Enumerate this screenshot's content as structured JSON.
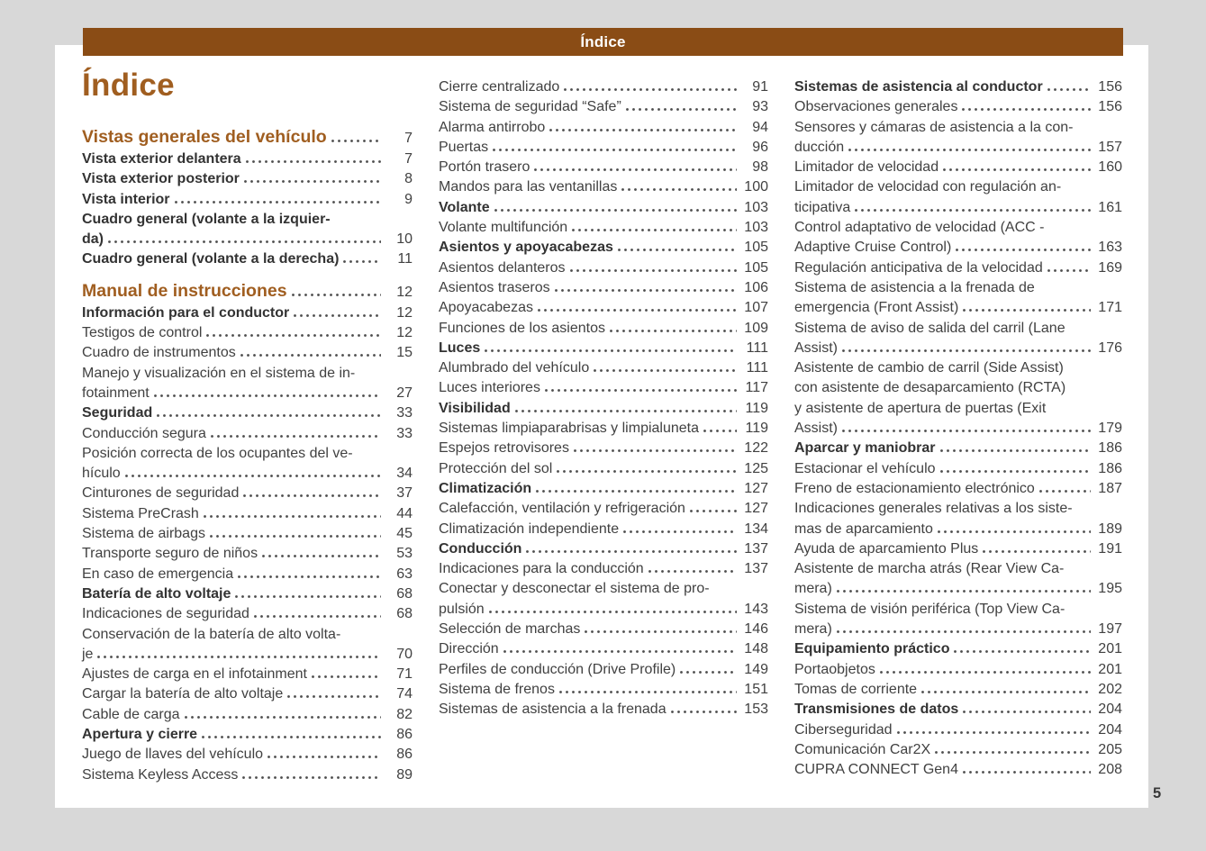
{
  "header": {
    "bar_title": "Índice"
  },
  "page": {
    "title": "Índice",
    "page_number": "5"
  },
  "colors": {
    "background": "#d8d8d8",
    "bar_brown": "#8a4c15",
    "accent_brown": "#a05e20",
    "text": "#414141"
  },
  "columns": [
    {
      "entries": [
        {
          "style": "h1",
          "lines": [
            "Vistas generales del vehículo"
          ],
          "page": "7"
        },
        {
          "style": "bold",
          "lines": [
            "Vista exterior delantera"
          ],
          "page": "7"
        },
        {
          "style": "bold",
          "lines": [
            "Vista exterior posterior"
          ],
          "page": "8"
        },
        {
          "style": "bold",
          "lines": [
            "Vista interior"
          ],
          "page": "9"
        },
        {
          "style": "bold",
          "lines": [
            "Cuadro general (volante a la izquier-",
            "da)"
          ],
          "page": "10"
        },
        {
          "style": "bold",
          "lines": [
            "Cuadro general (volante a la derecha)"
          ],
          "page": "11"
        },
        {
          "style": "h1",
          "lines": [
            "Manual de instrucciones"
          ],
          "page": "12"
        },
        {
          "style": "bold",
          "lines": [
            "Información para el conductor"
          ],
          "page": "12"
        },
        {
          "style": "normal",
          "lines": [
            "Testigos de control"
          ],
          "page": "12"
        },
        {
          "style": "normal",
          "lines": [
            "Cuadro de instrumentos"
          ],
          "page": "15"
        },
        {
          "style": "normal",
          "lines": [
            "Manejo y visualización en el sistema de in-",
            "fotainment"
          ],
          "page": "27"
        },
        {
          "style": "bold",
          "lines": [
            "Seguridad"
          ],
          "page": "33"
        },
        {
          "style": "normal",
          "lines": [
            "Conducción segura"
          ],
          "page": "33"
        },
        {
          "style": "normal",
          "lines": [
            "Posición correcta de los ocupantes del ve-",
            "hículo"
          ],
          "page": "34"
        },
        {
          "style": "normal",
          "lines": [
            "Cinturones de seguridad"
          ],
          "page": "37"
        },
        {
          "style": "normal",
          "lines": [
            "Sistema PreCrash"
          ],
          "page": "44"
        },
        {
          "style": "normal",
          "lines": [
            "Sistema de airbags"
          ],
          "page": "45"
        },
        {
          "style": "normal",
          "lines": [
            "Transporte seguro de niños"
          ],
          "page": "53"
        },
        {
          "style": "normal",
          "lines": [
            "En caso de emergencia"
          ],
          "page": "63"
        },
        {
          "style": "bold",
          "lines": [
            "Batería de alto voltaje"
          ],
          "page": "68"
        },
        {
          "style": "normal",
          "lines": [
            "Indicaciones de seguridad"
          ],
          "page": "68"
        },
        {
          "style": "normal",
          "lines": [
            "Conservación de la batería de alto volta-",
            "je"
          ],
          "page": "70"
        },
        {
          "style": "normal",
          "lines": [
            "Ajustes de carga en el infotainment"
          ],
          "page": "71"
        },
        {
          "style": "normal",
          "lines": [
            "Cargar la batería de alto voltaje"
          ],
          "page": "74"
        },
        {
          "style": "normal",
          "lines": [
            "Cable de carga"
          ],
          "page": "82"
        },
        {
          "style": "bold",
          "lines": [
            "Apertura y cierre"
          ],
          "page": "86"
        },
        {
          "style": "normal",
          "lines": [
            "Juego de llaves del vehículo"
          ],
          "page": "86"
        },
        {
          "style": "normal",
          "lines": [
            "Sistema Keyless Access"
          ],
          "page": "89"
        }
      ]
    },
    {
      "entries": [
        {
          "style": "normal",
          "lines": [
            "Cierre centralizado"
          ],
          "page": "91"
        },
        {
          "style": "normal",
          "lines": [
            "Sistema de seguridad “Safe”"
          ],
          "page": "93"
        },
        {
          "style": "normal",
          "lines": [
            "Alarma antirrobo"
          ],
          "page": "94"
        },
        {
          "style": "normal",
          "lines": [
            "Puertas"
          ],
          "page": "96"
        },
        {
          "style": "normal",
          "lines": [
            "Portón trasero"
          ],
          "page": "98"
        },
        {
          "style": "normal",
          "lines": [
            "Mandos para las ventanillas"
          ],
          "page": "100"
        },
        {
          "style": "bold",
          "lines": [
            "Volante"
          ],
          "page": "103"
        },
        {
          "style": "normal",
          "lines": [
            "Volante multifunción"
          ],
          "page": "103"
        },
        {
          "style": "bold",
          "lines": [
            "Asientos y apoyacabezas"
          ],
          "page": "105"
        },
        {
          "style": "normal",
          "lines": [
            "Asientos delanteros"
          ],
          "page": "105"
        },
        {
          "style": "normal",
          "lines": [
            "Asientos traseros"
          ],
          "page": "106"
        },
        {
          "style": "normal",
          "lines": [
            "Apoyacabezas"
          ],
          "page": "107"
        },
        {
          "style": "normal",
          "lines": [
            "Funciones de los asientos"
          ],
          "page": "109"
        },
        {
          "style": "bold",
          "lines": [
            "Luces"
          ],
          "page": "111"
        },
        {
          "style": "normal",
          "lines": [
            "Alumbrado del vehículo"
          ],
          "page": "111"
        },
        {
          "style": "normal",
          "lines": [
            "Luces interiores"
          ],
          "page": "117"
        },
        {
          "style": "bold",
          "lines": [
            "Visibilidad"
          ],
          "page": "119"
        },
        {
          "style": "normal",
          "lines": [
            "Sistemas limpiaparabrisas y limpialuneta"
          ],
          "page": "119"
        },
        {
          "style": "normal",
          "lines": [
            "Espejos retrovisores"
          ],
          "page": "122"
        },
        {
          "style": "normal",
          "lines": [
            "Protección del sol"
          ],
          "page": "125"
        },
        {
          "style": "bold",
          "lines": [
            "Climatización"
          ],
          "page": "127"
        },
        {
          "style": "normal",
          "lines": [
            "Calefacción, ventilación y refrigeración"
          ],
          "page": "127"
        },
        {
          "style": "normal",
          "lines": [
            "Climatización independiente"
          ],
          "page": "134"
        },
        {
          "style": "bold",
          "lines": [
            "Conducción"
          ],
          "page": "137"
        },
        {
          "style": "normal",
          "lines": [
            "Indicaciones para la conducción"
          ],
          "page": "137"
        },
        {
          "style": "normal",
          "lines": [
            "Conectar y desconectar el sistema de pro-",
            "pulsión"
          ],
          "page": "143"
        },
        {
          "style": "normal",
          "lines": [
            "Selección de marchas"
          ],
          "page": "146"
        },
        {
          "style": "normal",
          "lines": [
            "Dirección"
          ],
          "page": "148"
        },
        {
          "style": "normal",
          "lines": [
            "Perfiles de conducción (Drive Profile)"
          ],
          "page": "149"
        },
        {
          "style": "normal",
          "lines": [
            "Sistema de frenos"
          ],
          "page": "151"
        },
        {
          "style": "normal",
          "lines": [
            "Sistemas de asistencia a la frenada"
          ],
          "page": "153"
        }
      ]
    },
    {
      "entries": [
        {
          "style": "bold",
          "lines": [
            "Sistemas de asistencia al conductor"
          ],
          "page": "156"
        },
        {
          "style": "normal",
          "lines": [
            "Observaciones generales"
          ],
          "page": "156"
        },
        {
          "style": "normal",
          "lines": [
            "Sensores y cámaras de asistencia a la con-",
            "ducción"
          ],
          "page": "157"
        },
        {
          "style": "normal",
          "lines": [
            "Limitador de velocidad"
          ],
          "page": "160"
        },
        {
          "style": "normal",
          "lines": [
            "Limitador de velocidad con regulación an-",
            "ticipativa"
          ],
          "page": "161"
        },
        {
          "style": "normal",
          "lines": [
            "Control adaptativo de velocidad (ACC -",
            "Adaptive Cruise Control)"
          ],
          "page": "163"
        },
        {
          "style": "normal",
          "lines": [
            "Regulación anticipativa de la velocidad"
          ],
          "page": "169"
        },
        {
          "style": "normal",
          "lines": [
            "Sistema de asistencia a la frenada de",
            "emergencia (Front Assist)"
          ],
          "page": "171"
        },
        {
          "style": "normal",
          "lines": [
            "Sistema de aviso de salida del carril (Lane",
            "Assist)"
          ],
          "page": "176"
        },
        {
          "style": "normal",
          "lines": [
            "Asistente de cambio de carril (Side Assist)",
            "con asistente de desaparcamiento (RCTA)",
            "y asistente de apertura de puertas (Exit",
            "Assist)"
          ],
          "page": "179"
        },
        {
          "style": "bold",
          "lines": [
            "Aparcar y maniobrar"
          ],
          "page": "186"
        },
        {
          "style": "normal",
          "lines": [
            "Estacionar el vehículo"
          ],
          "page": "186"
        },
        {
          "style": "normal",
          "lines": [
            "Freno de estacionamiento electrónico"
          ],
          "page": "187"
        },
        {
          "style": "normal",
          "lines": [
            "Indicaciones generales relativas a los siste-",
            "mas de aparcamiento"
          ],
          "page": "189"
        },
        {
          "style": "normal",
          "lines": [
            "Ayuda de aparcamiento Plus"
          ],
          "page": "191"
        },
        {
          "style": "normal",
          "lines": [
            "Asistente de marcha atrás (Rear View Ca-",
            "mera)"
          ],
          "page": "195"
        },
        {
          "style": "normal",
          "lines": [
            "Sistema de visión periférica (Top View Ca-",
            "mera)"
          ],
          "page": "197"
        },
        {
          "style": "bold",
          "lines": [
            "Equipamiento práctico"
          ],
          "page": "201"
        },
        {
          "style": "normal",
          "lines": [
            "Portaobjetos"
          ],
          "page": "201"
        },
        {
          "style": "normal",
          "lines": [
            "Tomas de corriente"
          ],
          "page": "202"
        },
        {
          "style": "bold",
          "lines": [
            "Transmisiones de datos"
          ],
          "page": "204"
        },
        {
          "style": "normal",
          "lines": [
            "Ciberseguridad"
          ],
          "page": "204"
        },
        {
          "style": "normal",
          "lines": [
            "Comunicación Car2X"
          ],
          "page": "205"
        },
        {
          "style": "normal",
          "lines": [
            "CUPRA CONNECT Gen4"
          ],
          "page": "208"
        }
      ]
    }
  ]
}
